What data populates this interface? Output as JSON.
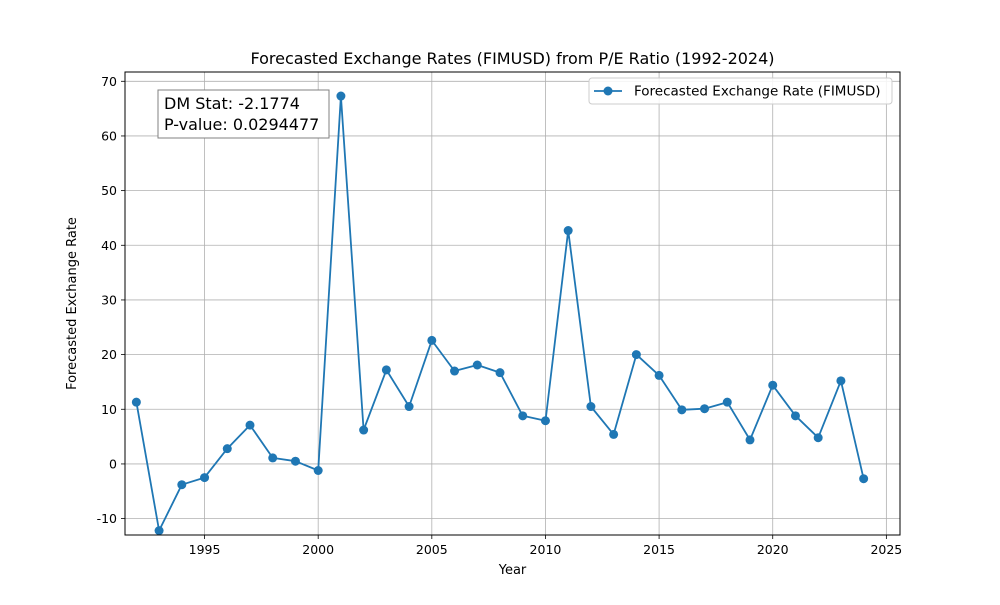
{
  "chart_data": {
    "type": "line",
    "title": "Forecasted Exchange Rates (FIMUSD) from P/E Ratio (1992-2024)",
    "xlabel": "Year",
    "ylabel": "Forecasted Exchange Rate",
    "xlim": [
      1991.5,
      2025.6
    ],
    "ylim": [
      -13.0,
      71.7
    ],
    "x_ticks": [
      1995,
      2000,
      2005,
      2010,
      2015,
      2020,
      2025
    ],
    "y_ticks": [
      -10,
      0,
      10,
      20,
      30,
      40,
      50,
      60,
      70
    ],
    "grid": true,
    "legend_position": "top-right",
    "series": [
      {
        "name": "Forecasted Exchange Rate (FIMUSD)",
        "color": "#1f77b4",
        "marker": "circle",
        "x": [
          1992,
          1993,
          1994,
          1995,
          1996,
          1997,
          1998,
          1999,
          2000,
          2001,
          2002,
          2003,
          2004,
          2005,
          2006,
          2007,
          2008,
          2009,
          2010,
          2011,
          2012,
          2013,
          2014,
          2015,
          2016,
          2017,
          2018,
          2019,
          2020,
          2021,
          2022,
          2023,
          2024
        ],
        "y": [
          11.3,
          -12.2,
          -3.8,
          -2.5,
          2.8,
          7.1,
          1.1,
          0.5,
          -1.2,
          67.3,
          6.2,
          17.2,
          10.5,
          22.6,
          17.0,
          18.1,
          16.7,
          8.8,
          7.9,
          42.7,
          10.5,
          5.4,
          20.0,
          16.2,
          9.9,
          10.1,
          11.3,
          4.4,
          14.4,
          8.8,
          4.8,
          15.2,
          -2.7
        ]
      }
    ],
    "annotation": {
      "line1": "DM Stat: -2.1774",
      "line2": "P-value: 0.0294477"
    }
  }
}
